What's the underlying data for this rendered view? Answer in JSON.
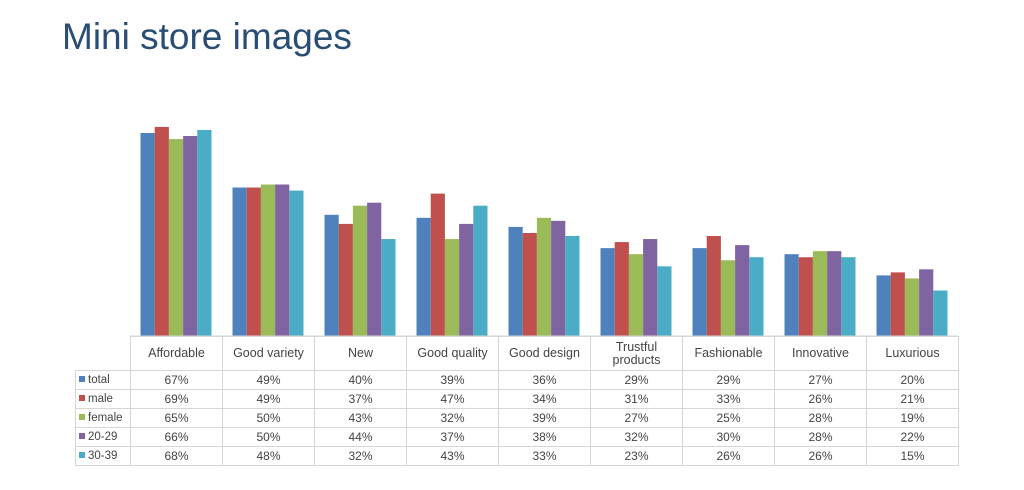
{
  "chart_data": {
    "type": "bar",
    "title": "Mini store images",
    "categories": [
      "Affordable",
      "Good variety",
      "New",
      "Good quality",
      "Good design",
      "Trustful products",
      "Fashionable",
      "Innovative",
      "Luxurious"
    ],
    "series": [
      {
        "name": "total",
        "color": "#4f81bd",
        "values": [
          67,
          49,
          40,
          39,
          36,
          29,
          29,
          27,
          20
        ],
        "value_labels": [
          "67%",
          "49%",
          "40%",
          "39%",
          "36%",
          "29%",
          "29%",
          "27%",
          "20%"
        ]
      },
      {
        "name": "male",
        "color": "#c0504d",
        "values": [
          69,
          49,
          37,
          47,
          34,
          31,
          33,
          26,
          21
        ],
        "value_labels": [
          "69%",
          "49%",
          "37%",
          "47%",
          "34%",
          "31%",
          "33%",
          "26%",
          "21%"
        ]
      },
      {
        "name": "female",
        "color": "#9bbb59",
        "values": [
          65,
          50,
          43,
          32,
          39,
          27,
          25,
          28,
          19
        ],
        "value_labels": [
          "65%",
          "50%",
          "43%",
          "32%",
          "39%",
          "27%",
          "25%",
          "28%",
          "19%"
        ]
      },
      {
        "name": "20-29",
        "color": "#8064a2",
        "values": [
          66,
          50,
          44,
          37,
          38,
          32,
          30,
          28,
          22
        ],
        "value_labels": [
          "66%",
          "50%",
          "44%",
          "37%",
          "38%",
          "32%",
          "30%",
          "28%",
          "22%"
        ]
      },
      {
        "name": "30-39",
        "color": "#4bacc6",
        "values": [
          68,
          48,
          32,
          43,
          33,
          23,
          26,
          26,
          15
        ],
        "value_labels": [
          "68%",
          "48%",
          "32%",
          "43%",
          "33%",
          "23%",
          "26%",
          "26%",
          "15%"
        ]
      }
    ]
  }
}
